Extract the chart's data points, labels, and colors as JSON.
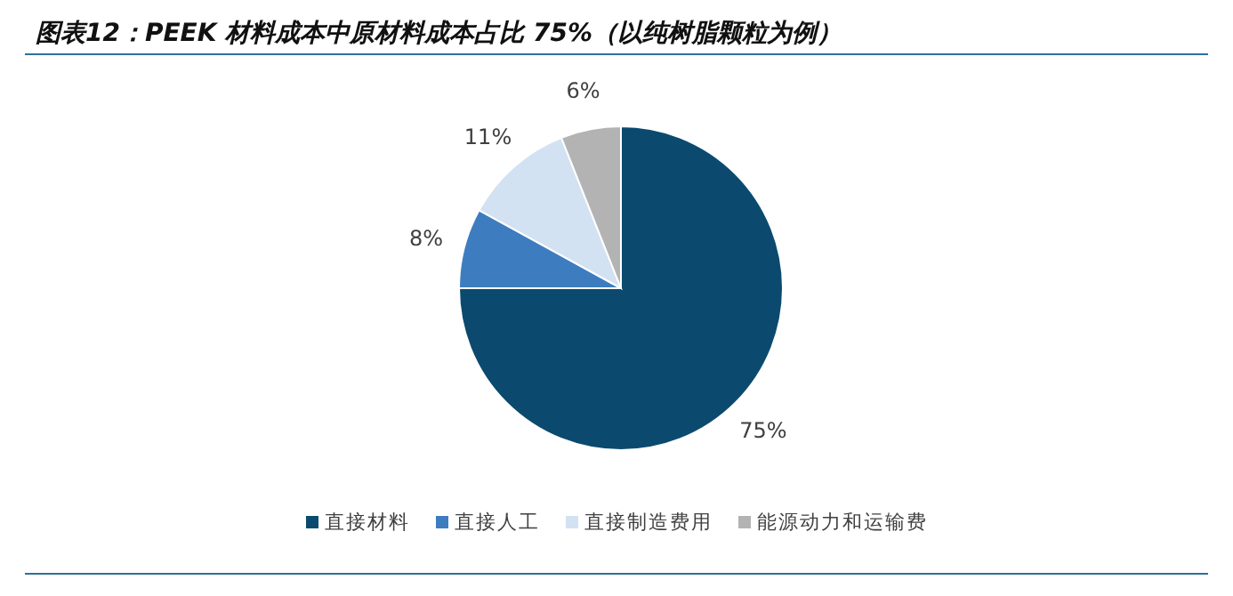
{
  "chart_data": {
    "type": "pie",
    "title": "图表12：PEEK 材料成本中原材料成本占比 75%（以纯树脂颗粒为例）",
    "categories": [
      "直接材料",
      "直接人工",
      "直接制造费用",
      "能源动力和运输费"
    ],
    "values": [
      75,
      8,
      11,
      6
    ],
    "colors": [
      "#0b4a6e",
      "#3d7dbf",
      "#d2e2f2",
      "#b3b3b3"
    ],
    "value_labels": [
      "75%",
      "8%",
      "11%",
      "6%"
    ],
    "legend": "bottom"
  }
}
